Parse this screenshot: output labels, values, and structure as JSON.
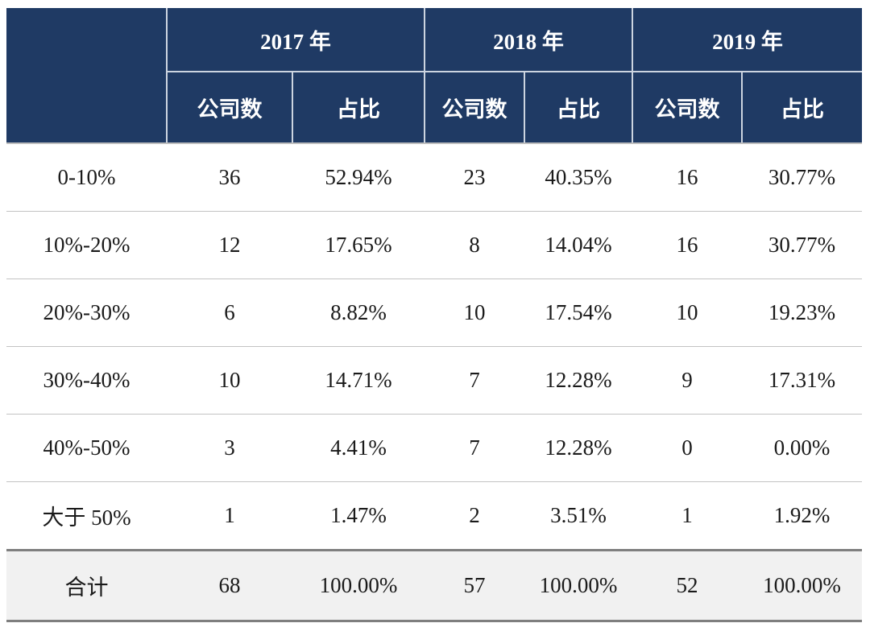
{
  "chart_data": {
    "type": "table",
    "corner_label": "",
    "column_groups": [
      {
        "label": "2017 年",
        "subcolumns": [
          "公司数",
          "占比"
        ]
      },
      {
        "label": "2018 年",
        "subcolumns": [
          "公司数",
          "占比"
        ]
      },
      {
        "label": "2019 年",
        "subcolumns": [
          "公司数",
          "占比"
        ]
      }
    ],
    "rows": [
      {
        "label": "0-10%",
        "values": [
          "36",
          "52.94%",
          "23",
          "40.35%",
          "16",
          "30.77%"
        ]
      },
      {
        "label": "10%-20%",
        "values": [
          "12",
          "17.65%",
          "8",
          "14.04%",
          "16",
          "30.77%"
        ]
      },
      {
        "label": "20%-30%",
        "values": [
          "6",
          "8.82%",
          "10",
          "17.54%",
          "10",
          "19.23%"
        ]
      },
      {
        "label": "30%-40%",
        "values": [
          "10",
          "14.71%",
          "7",
          "12.28%",
          "9",
          "17.31%"
        ]
      },
      {
        "label": "40%-50%",
        "values": [
          "3",
          "4.41%",
          "7",
          "12.28%",
          "0",
          "0.00%"
        ]
      },
      {
        "label": "大于 50%",
        "values": [
          "1",
          "1.47%",
          "2",
          "3.51%",
          "1",
          "1.92%"
        ]
      }
    ],
    "total_row": {
      "label": "合计",
      "values": [
        "68",
        "100.00%",
        "57",
        "100.00%",
        "52",
        "100.00%"
      ]
    }
  },
  "colors": {
    "header_bg": "#1F3A64",
    "header_text": "#FFFFFF",
    "header_divider": "#CCD4E0",
    "body_text": "#1A1A1A",
    "row_divider": "#C3C3C3",
    "total_bg": "#F1F1F1",
    "total_border": "#7F7F7F"
  }
}
